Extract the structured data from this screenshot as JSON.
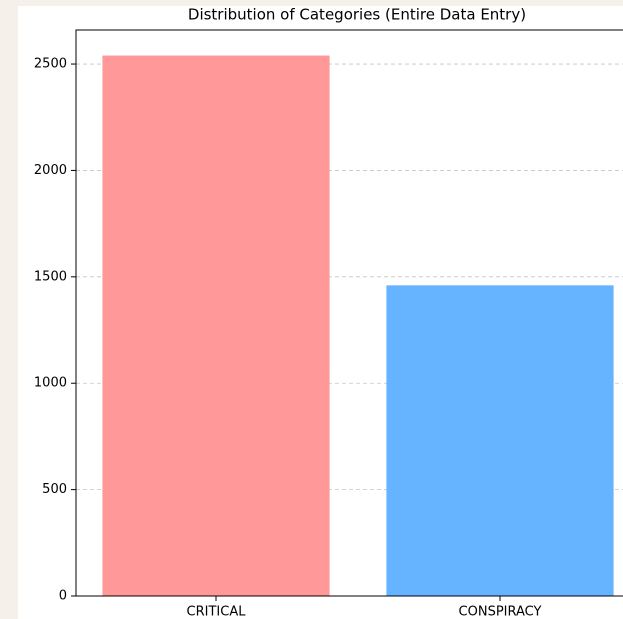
{
  "chart_data": {
    "type": "bar",
    "title": "Distribution of Categories (Entire Data Entry)",
    "categories": [
      "CRITICAL",
      "CONSPIRACY"
    ],
    "values": [
      2540,
      1460
    ],
    "colors": [
      "#ff9999",
      "#66b3ff"
    ],
    "ylim": [
      0,
      2660
    ],
    "yticks": [
      0,
      500,
      1000,
      1500,
      2000,
      2500
    ],
    "grid": true
  }
}
